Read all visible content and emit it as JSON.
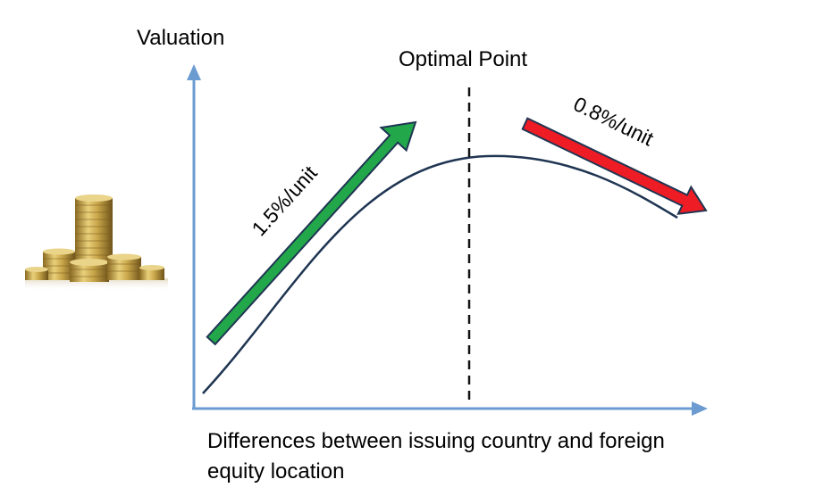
{
  "labels": {
    "y_axis": "Valuation",
    "optimal_point": "Optimal Point",
    "rising_rate": "1.5%/unit",
    "falling_rate": "0.8%/unit",
    "x_axis": "Differences between issuing country and foreign equity location"
  },
  "colors": {
    "axis": "#6b9bd1",
    "curve": "#1f3552",
    "rising_arrow": "#22a84a",
    "falling_arrow": "#ee1c25",
    "arrow_outline": "#1f3552",
    "coin_gold": "#c9a64a"
  },
  "icons": {
    "coins": "coin-stack-icon"
  }
}
